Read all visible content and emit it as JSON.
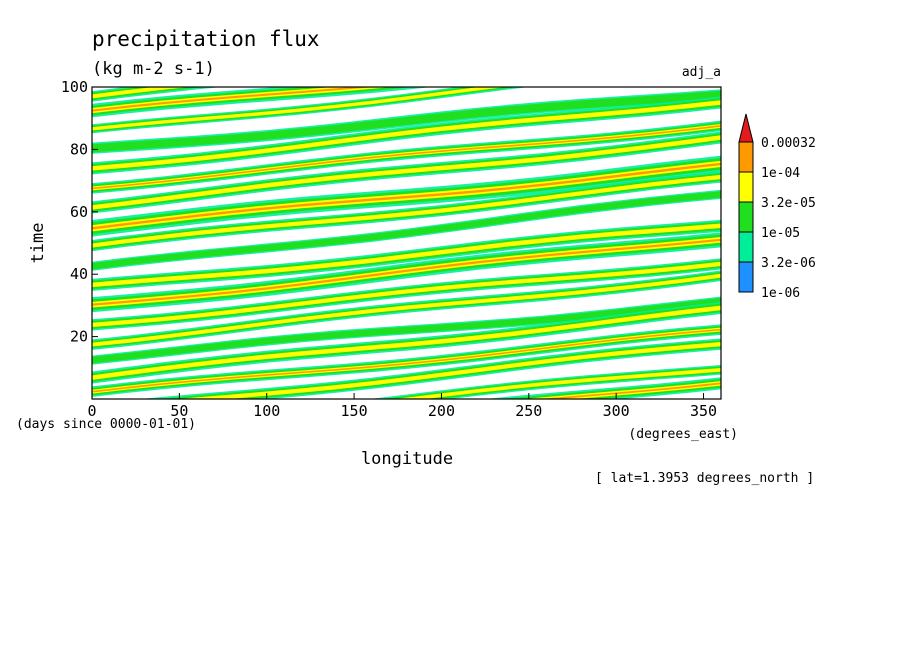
{
  "chart_data": {
    "type": "heatmap",
    "title": "precipitation flux",
    "units": "(kg m-2 s-1)",
    "run_label": "adj_a",
    "xlabel": "longitude",
    "x_units": "(degrees_east)",
    "ylabel": "time",
    "y_units": "(days since 0000-01-01)",
    "xlim": [
      0,
      360
    ],
    "ylim": [
      0,
      100
    ],
    "x_ticks": [
      "0",
      "50",
      "100",
      "150",
      "200",
      "250",
      "300",
      "350"
    ],
    "x_tick_values": [
      0,
      50,
      100,
      150,
      200,
      250,
      300,
      350
    ],
    "y_ticks": [
      "20",
      "40",
      "60",
      "80",
      "100"
    ],
    "y_tick_values": [
      20,
      40,
      60,
      80,
      100
    ],
    "footnote": "[ lat=1.3953 degrees_north ]",
    "colorbar": {
      "labels": [
        "0.00032",
        "1e-04",
        "3.2e-05",
        "1e-05",
        "3.2e-06",
        "1e-06"
      ],
      "colors": [
        "#e41a1c",
        "#ff9900",
        "#ffff00",
        "#1fdf1f",
        "#00ee99",
        "#1e90ff"
      ]
    },
    "bands": [
      {
        "t0": 97,
        "slope": 0.055,
        "level": 3,
        "width": 1.4
      },
      {
        "t0": 92,
        "slope": 0.055,
        "level": 2,
        "width": 1.8
      },
      {
        "t0": 86,
        "slope": 0.06,
        "level": 3,
        "width": 1.2
      },
      {
        "t0": 80,
        "slope": 0.05,
        "level": 4,
        "width": 1.5
      },
      {
        "t0": 74,
        "slope": 0.06,
        "level": 3,
        "width": 1.6
      },
      {
        "t0": 68,
        "slope": 0.055,
        "level": 2,
        "width": 1.4
      },
      {
        "t0": 62,
        "slope": 0.06,
        "level": 3,
        "width": 1.6
      },
      {
        "t0": 55,
        "slope": 0.055,
        "level": 2,
        "width": 2.2
      },
      {
        "t0": 49,
        "slope": 0.06,
        "level": 3,
        "width": 1.5
      },
      {
        "t0": 42,
        "slope": 0.065,
        "level": 4,
        "width": 1.2
      },
      {
        "t0": 36,
        "slope": 0.055,
        "level": 3,
        "width": 1.6
      },
      {
        "t0": 30,
        "slope": 0.06,
        "level": 2,
        "width": 2.0
      },
      {
        "t0": 24,
        "slope": 0.055,
        "level": 3,
        "width": 1.5
      },
      {
        "t0": 18,
        "slope": 0.06,
        "level": 3,
        "width": 1.4
      },
      {
        "t0": 13,
        "slope": 0.05,
        "level": 4,
        "width": 1.2
      },
      {
        "t0": 7,
        "slope": 0.06,
        "level": 3,
        "width": 1.6
      },
      {
        "t0": 2,
        "slope": 0.055,
        "level": 2,
        "width": 1.4
      },
      {
        "t0": -4,
        "slope": 0.06,
        "level": 3,
        "width": 1.5
      },
      {
        "t0": -10,
        "slope": 0.055,
        "level": 3,
        "width": 1.3
      },
      {
        "t0": -16,
        "slope": 0.06,
        "level": 2,
        "width": 1.6
      }
    ]
  }
}
